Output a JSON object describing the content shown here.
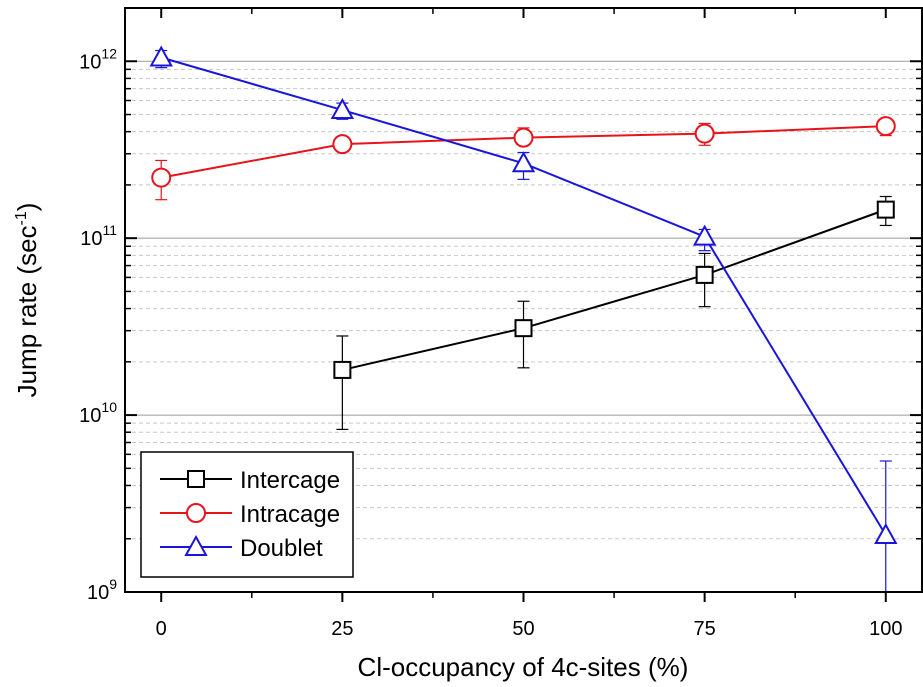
{
  "chart_data": {
    "type": "line",
    "xlabel": "Cl-occupancy of 4c-sites (%)",
    "ylabel": "Jump rate (sec",
    "ylabel_sup": "-1",
    "ylabel_end": ")",
    "xlim": [
      -5,
      105
    ],
    "ylim": [
      1000000000.0,
      2000000000000.0
    ],
    "y_scale": "log",
    "grid": "horizontal major (solid) and minor (dashed) lines",
    "legend_position": "bottom-left",
    "x_ticks": [
      0,
      25,
      50,
      75,
      100
    ],
    "x_tick_labels": [
      "0",
      "25",
      "50",
      "75",
      "100"
    ],
    "y_ticks": [
      {
        "value": 1000000000.0,
        "base": "10",
        "exp": "9"
      },
      {
        "value": 10000000000.0,
        "base": "10",
        "exp": "10"
      },
      {
        "value": 100000000000.0,
        "base": "10",
        "exp": "11"
      },
      {
        "value": 1000000000000.0,
        "base": "10",
        "exp": "12"
      }
    ],
    "series": [
      {
        "name": "Intercage",
        "color": "#000000",
        "marker": "square",
        "points": [
          {
            "x": 25,
            "y": 18000000000.0,
            "err_low": 8300000000.0,
            "err_high": 28000000000.0
          },
          {
            "x": 50,
            "y": 31000000000.0,
            "err_low": 18500000000.0,
            "err_high": 44000000000.0
          },
          {
            "x": 75,
            "y": 62000000000.0,
            "err_low": 41000000000.0,
            "err_high": 82000000000.0
          },
          {
            "x": 100,
            "y": 145000000000.0,
            "err_low": 118000000000.0,
            "err_high": 172000000000.0
          }
        ]
      },
      {
        "name": "Intracage",
        "color": "#e8141b",
        "marker": "circle",
        "points": [
          {
            "x": 0,
            "y": 220000000000.0,
            "err_low": 165000000000.0,
            "err_high": 275000000000.0
          },
          {
            "x": 25,
            "y": 340000000000.0,
            "err_low": 320000000000.0,
            "err_high": 360000000000.0
          },
          {
            "x": 50,
            "y": 370000000000.0,
            "err_low": 340000000000.0,
            "err_high": 420000000000.0
          },
          {
            "x": 75,
            "y": 390000000000.0,
            "err_low": 335000000000.0,
            "err_high": 445000000000.0
          },
          {
            "x": 100,
            "y": 430000000000.0,
            "err_low": 380000000000.0,
            "err_high": 460000000000.0
          }
        ]
      },
      {
        "name": "Doublet",
        "color": "#1a14dc",
        "marker": "triangle",
        "points": [
          {
            "x": 0,
            "y": 1050000000000.0,
            "err_low": 920000000000.0,
            "err_high": 1150000000000.0
          },
          {
            "x": 25,
            "y": 530000000000.0,
            "err_low": 470000000000.0,
            "err_high": 580000000000.0
          },
          {
            "x": 50,
            "y": 265000000000.0,
            "err_low": 215000000000.0,
            "err_high": 305000000000.0
          },
          {
            "x": 75,
            "y": 102000000000.0,
            "err_low": 85000000000.0,
            "err_high": 112000000000.0
          },
          {
            "x": 100,
            "y": 2100000000.0,
            "err_low": 1000000000.0,
            "err_high": 5500000000.0
          }
        ]
      }
    ]
  }
}
